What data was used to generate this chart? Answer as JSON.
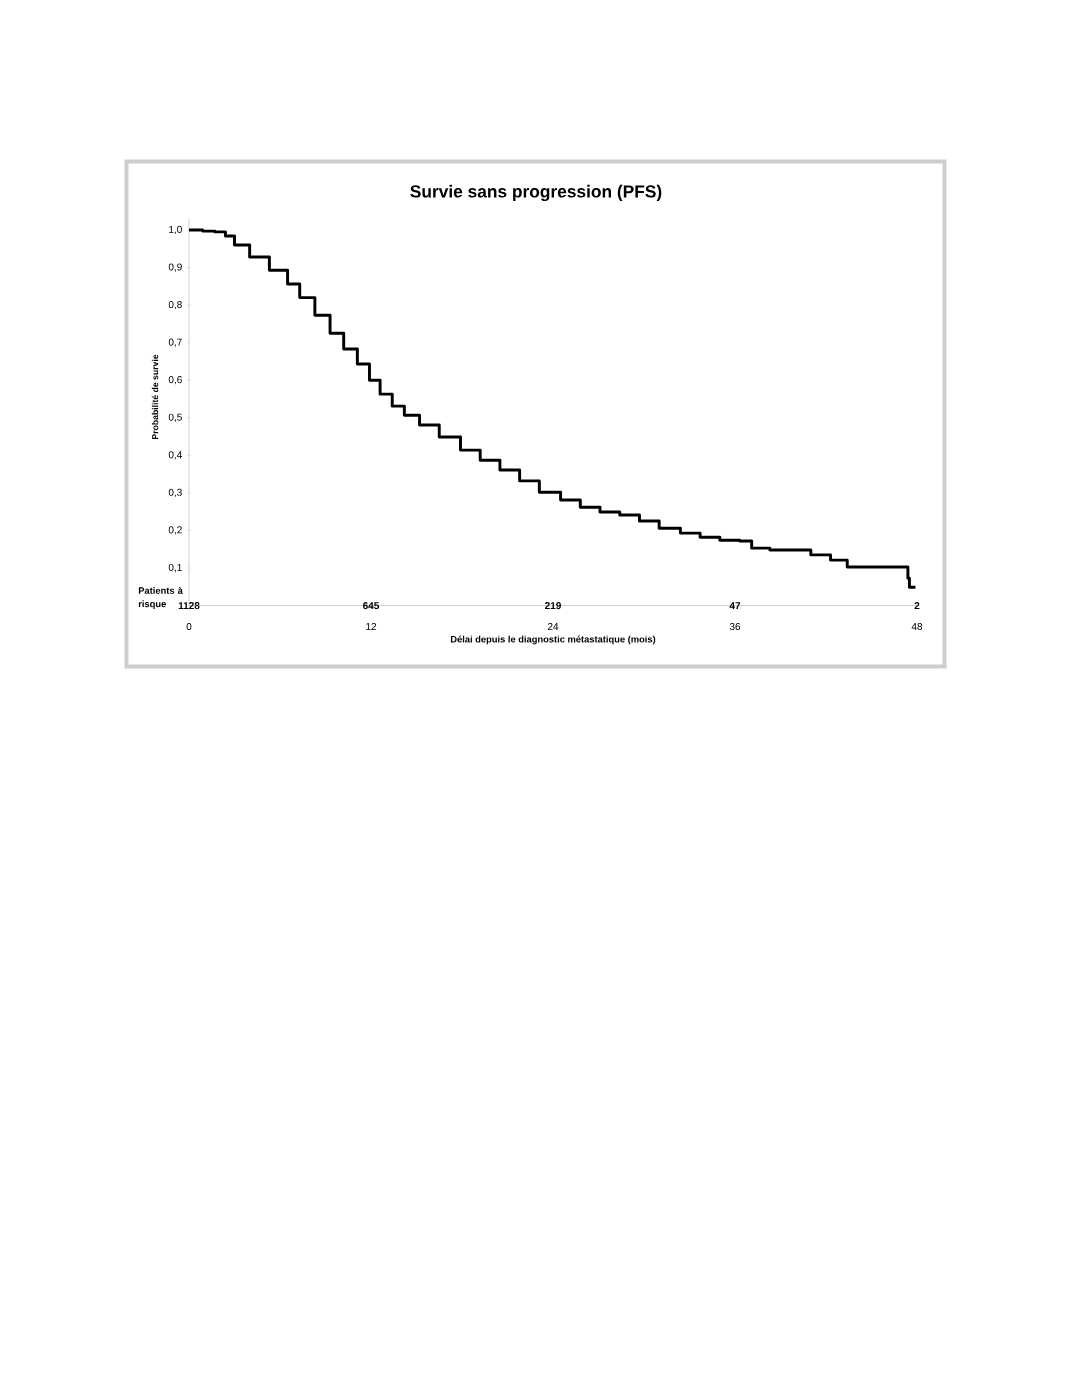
{
  "chart_data": {
    "type": "step",
    "title": "Survie sans progression (PFS)",
    "xlabel": "Délai depuis le diagnostic métastatique (mois)",
    "ylabel": "Probabilité de survie",
    "x": [
      0,
      0.9,
      1.7,
      2.4,
      3.0,
      4.0,
      5.3,
      6.5,
      7.3,
      8.3,
      9.3,
      10.2,
      11.1,
      11.9,
      12.6,
      13.4,
      14.2,
      15.2,
      16.5,
      17.9,
      19.2,
      20.5,
      21.8,
      23.1,
      24.5,
      25.8,
      27.1,
      28.4,
      29.7,
      31.0,
      32.4,
      33.7,
      35.0,
      36.3,
      37.1,
      38.3,
      40.0,
      41.0,
      42.3,
      43.4,
      47.2,
      47.4,
      47.5,
      47.9
    ],
    "values": [
      1.0,
      0.997,
      0.995,
      0.984,
      0.96,
      0.928,
      0.893,
      0.856,
      0.82,
      0.773,
      0.725,
      0.683,
      0.643,
      0.6,
      0.563,
      0.531,
      0.507,
      0.481,
      0.449,
      0.414,
      0.387,
      0.361,
      0.332,
      0.302,
      0.281,
      0.262,
      0.249,
      0.241,
      0.225,
      0.206,
      0.193,
      0.182,
      0.174,
      0.172,
      0.153,
      0.148,
      0.148,
      0.135,
      0.121,
      0.103,
      0.103,
      0.073,
      0.049,
      0.049
    ],
    "color": "#000000",
    "xlim": [
      0,
      48
    ],
    "ylim": [
      0,
      1.03
    ],
    "xticks": [
      0,
      12,
      24,
      36,
      48
    ],
    "yticks": [
      {
        "value": 0.1,
        "label": "0,1"
      },
      {
        "value": 0.2,
        "label": "0,2"
      },
      {
        "value": 0.3,
        "label": "0,3"
      },
      {
        "value": 0.4,
        "label": "0,4"
      },
      {
        "value": 0.5,
        "label": "0,5"
      },
      {
        "value": 0.6,
        "label": "0,6"
      },
      {
        "value": 0.7,
        "label": "0,7"
      },
      {
        "value": 0.8,
        "label": "0,8"
      },
      {
        "value": 0.9,
        "label": "0,9"
      },
      {
        "value": 1.0,
        "label": "1,0"
      }
    ],
    "annotations": [
      "Patients à risque",
      "1128",
      "645",
      "219",
      "47",
      "2"
    ],
    "grid": false,
    "marker": "none",
    "line_style": "solid"
  }
}
